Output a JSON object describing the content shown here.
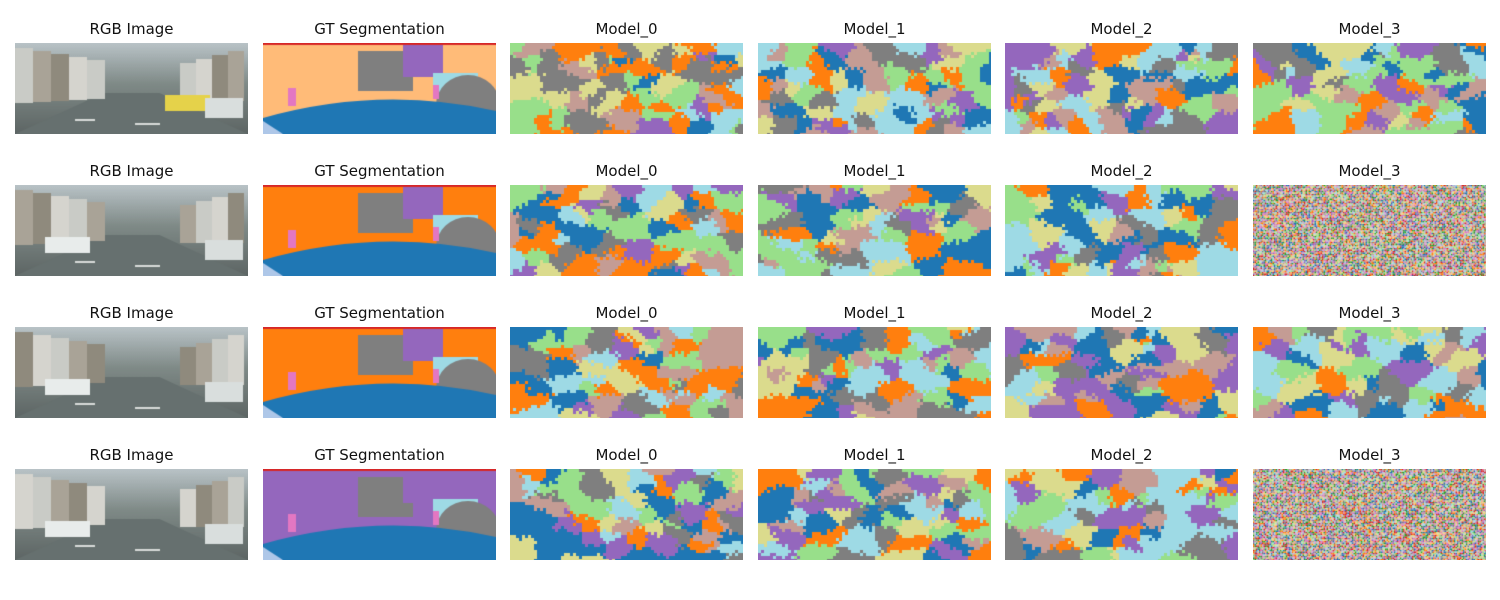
{
  "figure": {
    "column_titles": [
      "RGB Image",
      "GT Segmentation",
      "Model_0",
      "Model_1",
      "Model_2",
      "Model_3"
    ],
    "rows": 4
  },
  "palette": {
    "blue": "#1f77b4",
    "orange": "#ff7f0e",
    "gray": "#7f7f7f",
    "purple": "#9467bd",
    "light_blue": "#9edae5",
    "light_green": "#98df8a",
    "brown_pink": "#c49c94",
    "olive_yellow": "#dbdb8d",
    "peach": "#ffbb78",
    "pink": "#e377c2",
    "red": "#d62728",
    "green": "#2ca02c",
    "pale_blue": "#aec7e8",
    "pale_purple": "#c5b0d5"
  }
}
